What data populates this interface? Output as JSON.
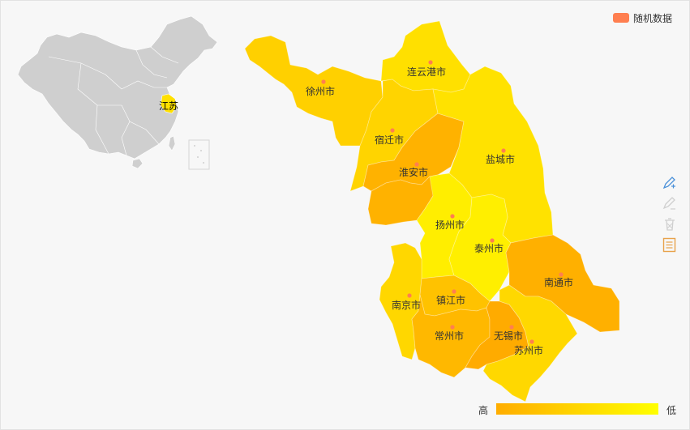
{
  "legend": {
    "label": "随机数据",
    "color": "#ff7f50"
  },
  "inset_map": {
    "highlight_label": "江苏",
    "base_color": "#cfcfcf",
    "highlight_color": "#ffe000"
  },
  "visual_map": {
    "high_label": "高",
    "low_label": "低",
    "high_color": "#ffad00",
    "low_color": "#ffff00"
  },
  "toolbox": [
    "mark-icon",
    "mark-undo-icon",
    "mark-clear-icon",
    "data-view-icon"
  ],
  "regions": [
    {
      "id": "xuzhou",
      "name": "徐州市",
      "level": 0.35,
      "fill": "#ffd000"
    },
    {
      "id": "lianyungang",
      "name": "连云港市",
      "level": 0.2,
      "fill": "#ffe000"
    },
    {
      "id": "suqian",
      "name": "宿迁市",
      "level": 0.3,
      "fill": "#ffd400"
    },
    {
      "id": "huaian",
      "name": "淮安市",
      "level": 0.8,
      "fill": "#ffb200"
    },
    {
      "id": "yancheng",
      "name": "盐城市",
      "level": 0.2,
      "fill": "#ffe200"
    },
    {
      "id": "yangzhou",
      "name": "扬州市",
      "level": 0.05,
      "fill": "#ffee00"
    },
    {
      "id": "taizhou",
      "name": "泰州市",
      "level": 0.05,
      "fill": "#ffef00"
    },
    {
      "id": "nantong",
      "name": "南通市",
      "level": 0.85,
      "fill": "#ffb000"
    },
    {
      "id": "nanjing",
      "name": "南京市",
      "level": 0.3,
      "fill": "#ffd700"
    },
    {
      "id": "zhenjiang",
      "name": "镇江市",
      "level": 0.6,
      "fill": "#ffc200"
    },
    {
      "id": "changzhou",
      "name": "常州市",
      "level": 0.7,
      "fill": "#ffb800"
    },
    {
      "id": "wuxi",
      "name": "无锡市",
      "level": 0.9,
      "fill": "#ffab00"
    },
    {
      "id": "suzhou",
      "name": "苏州市",
      "level": 0.3,
      "fill": "#ffd800"
    },
    {
      "id": "chuzhou_gap",
      "name": "",
      "level": 0.8,
      "fill": "#ffaf00"
    }
  ]
}
